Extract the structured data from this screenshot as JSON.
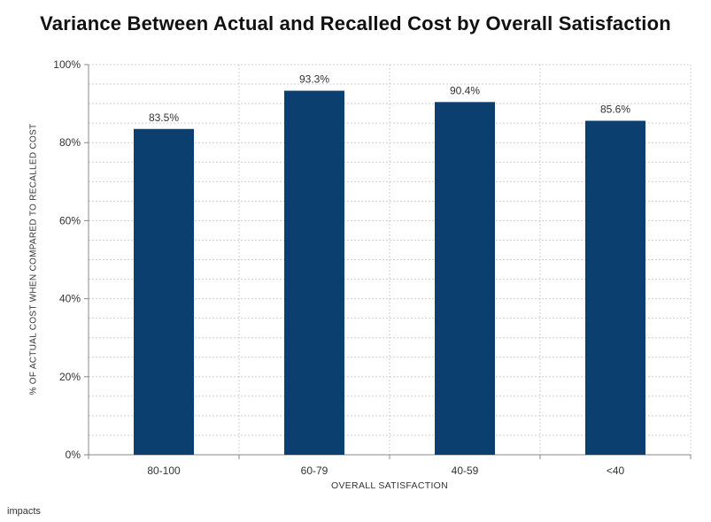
{
  "chart_data": {
    "type": "bar",
    "title": "Variance Between Actual and Recalled Cost by Overall Satisfaction",
    "xlabel": "OVERALL SATISFACTION",
    "ylabel": "% OF ACTUAL COST WHEN COMPARED TO RECALLED COST",
    "categories": [
      "80-100",
      "60-79",
      "40-59",
      "<40"
    ],
    "values": [
      83.5,
      93.3,
      90.4,
      85.6
    ],
    "value_labels": [
      "83.5%",
      "93.3%",
      "90.4%",
      "85.6%"
    ],
    "ylim": [
      0,
      100
    ],
    "yticks": [
      0,
      20,
      40,
      60,
      80,
      100
    ],
    "ytick_labels": [
      "0%",
      "20%",
      "40%",
      "60%",
      "80%",
      "100%"
    ],
    "grid": true,
    "bar_color": "#0b3f70"
  },
  "footer": {
    "logo_text": "impacts"
  }
}
